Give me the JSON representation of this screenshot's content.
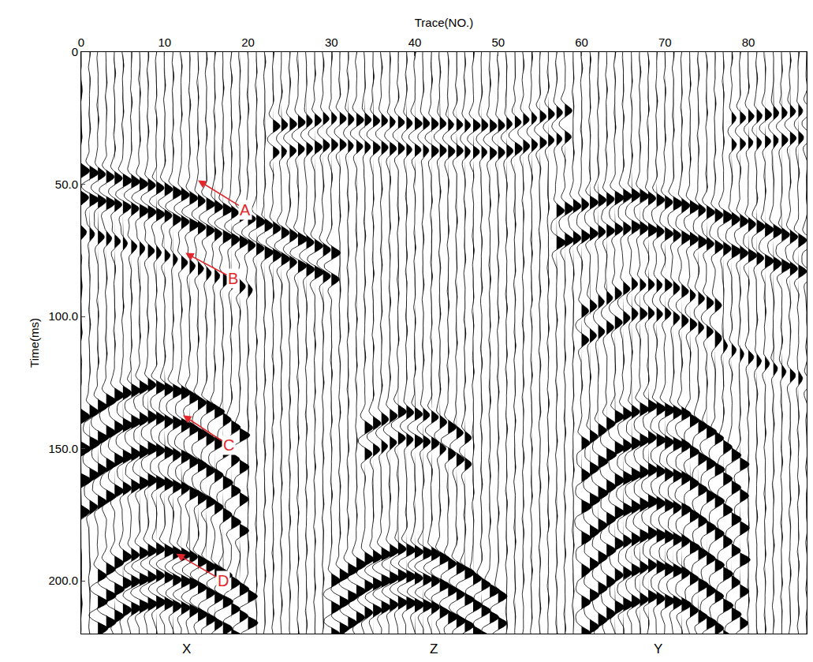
{
  "chart_data": {
    "type": "wiggle",
    "x_title": "Trace(NO.)",
    "y_title": "Time(ms)",
    "xlim": [
      0,
      87
    ],
    "xticks": [
      0,
      10,
      20,
      30,
      40,
      50,
      60,
      70,
      80
    ],
    "ylim": [
      220,
      0
    ],
    "yticks": [
      0,
      {
        "value": 50,
        "label": "50.0"
      },
      {
        "value": 100,
        "label": "100.0"
      },
      {
        "value": 150,
        "label": "150.0"
      },
      {
        "value": 200,
        "label": "200.0"
      }
    ],
    "grid": false,
    "color": "#000000",
    "traces": [
      0,
      1,
      2,
      3,
      4,
      5,
      6,
      7,
      8,
      9,
      10,
      11,
      12,
      13,
      14,
      15,
      16,
      17,
      18,
      19,
      20,
      21,
      22,
      23,
      24,
      25,
      26,
      27,
      28,
      29,
      30,
      31,
      32,
      33,
      34,
      35,
      36,
      37,
      38,
      39,
      40,
      41,
      42,
      43,
      44,
      45,
      46,
      47,
      48,
      49,
      50,
      51,
      52,
      53,
      54,
      55,
      56,
      57,
      58,
      59,
      60,
      61,
      62,
      63,
      64,
      65,
      66,
      67,
      68,
      69,
      70,
      71,
      72,
      73,
      74,
      75,
      76,
      77,
      78,
      79,
      80,
      81,
      82,
      83,
      84,
      85,
      86,
      87
    ],
    "events": [
      {
        "traces": [
          0,
          10,
          20,
          30
        ],
        "times": [
          45,
          52,
          63,
          76
        ],
        "offsets": [
          0,
          10
        ],
        "amplitude": 0.9
      },
      {
        "traces": [
          0,
          10,
          20
        ],
        "times": [
          68,
          77,
          90
        ],
        "offsets": [
          0
        ],
        "amplitude": 0.6
      },
      {
        "traces": [
          23,
          30,
          40,
          50,
          58
        ],
        "times": [
          28,
          25,
          27,
          28,
          22
        ],
        "offsets": [
          0,
          10
        ],
        "amplitude": 0.7
      },
      {
        "traces": [
          78,
          87
        ],
        "times": [
          25,
          22
        ],
        "offsets": [
          0,
          10
        ],
        "amplitude": 0.6
      },
      {
        "traces": [
          57,
          62,
          66,
          72,
          80,
          87
        ],
        "times": [
          60,
          56,
          54,
          58,
          65,
          72
        ],
        "offsets": [
          0,
          12
        ],
        "amplitude": 0.9
      },
      {
        "traces": [
          60,
          66,
          70,
          76
        ],
        "times": [
          98,
          88,
          88,
          96
        ],
        "offsets": [
          0,
          11
        ],
        "amplitude": 0.7
      },
      {
        "traces": [
          76,
          87
        ],
        "times": [
          110,
          125
        ],
        "offsets": [
          0
        ],
        "amplitude": 0.5
      },
      {
        "traces": [
          0,
          4,
          8,
          12,
          16,
          19
        ],
        "times": [
          138,
          130,
          126,
          129,
          136,
          145
        ],
        "offsets": [
          0,
          12,
          24,
          36
        ],
        "amplitude": 1
      },
      {
        "traces": [
          2,
          5,
          9,
          13,
          17,
          20
        ],
        "times": [
          198,
          191,
          188,
          191,
          198,
          206
        ],
        "offsets": [
          0,
          10,
          20
        ],
        "amplitude": 1
      },
      {
        "traces": [
          34,
          38,
          42,
          46
        ],
        "times": [
          142,
          136,
          138,
          146
        ],
        "offsets": [
          0,
          10
        ],
        "amplitude": 0.8
      },
      {
        "traces": [
          30,
          34,
          38,
          42,
          46,
          50
        ],
        "times": [
          200,
          192,
          188,
          190,
          197,
          206
        ],
        "offsets": [
          0,
          10,
          20
        ],
        "amplitude": 1
      },
      {
        "traces": [
          60,
          64,
          68,
          72,
          76,
          79
        ],
        "times": [
          148,
          138,
          134,
          137,
          146,
          156
        ],
        "offsets": [
          0,
          12,
          24,
          36,
          48,
          60,
          72
        ],
        "amplitude": 1
      }
    ],
    "annotations": [
      {
        "text": "A",
        "trace": 19.7,
        "time": 59.6,
        "arrow_trace": 14,
        "arrow_time": 48.5,
        "color": "#e3262b"
      },
      {
        "text": "B",
        "trace": 18.2,
        "time": 85.6,
        "arrow_trace": 12.5,
        "arrow_time": 76,
        "color": "#e3262b"
      },
      {
        "text": "C",
        "trace": 17.7,
        "time": 148.8,
        "arrow_trace": 12.2,
        "arrow_time": 137.4,
        "color": "#e3262b"
      },
      {
        "text": "D",
        "trace": 17,
        "time": 200,
        "arrow_trace": 11.4,
        "arrow_time": 189.8,
        "color": "#e3262b"
      }
    ],
    "bottom_labels": [
      {
        "text": "X",
        "trace": 12.6
      },
      {
        "text": "Z",
        "trace": 42.3
      },
      {
        "text": "Y",
        "trace": 69.2
      }
    ]
  }
}
